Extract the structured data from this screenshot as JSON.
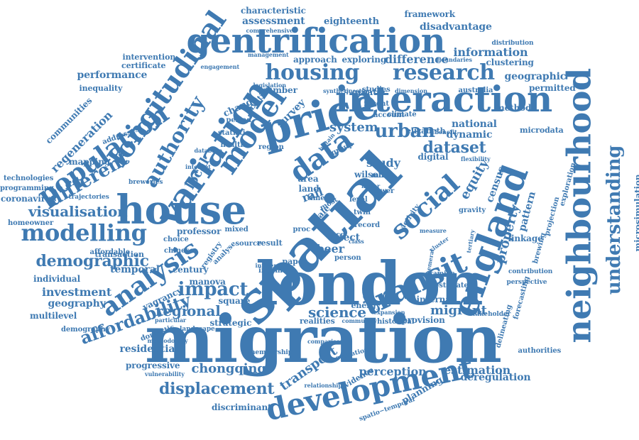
{
  "word_cloud": {
    "color": "#3f7ab2",
    "words": [
      {
        "text": "migration"
      },
      {
        "text": "london"
      },
      {
        "text": "spatial"
      },
      {
        "text": "neighbourhood"
      },
      {
        "text": "england"
      },
      {
        "text": "house"
      },
      {
        "text": "interaction"
      },
      {
        "text": "development"
      },
      {
        "text": "price"
      },
      {
        "text": "gentrification"
      },
      {
        "text": "modelling"
      },
      {
        "text": "analysis"
      },
      {
        "text": "longitudinal"
      },
      {
        "text": "understanding"
      },
      {
        "text": "population"
      },
      {
        "text": "variation"
      },
      {
        "text": "housing"
      },
      {
        "text": "research"
      },
      {
        "text": "model"
      },
      {
        "text": "authority"
      },
      {
        "text": "transit"
      },
      {
        "text": "data"
      },
      {
        "text": "social"
      },
      {
        "text": "urban"
      },
      {
        "text": "dataset"
      },
      {
        "text": "demographic"
      },
      {
        "text": "affordability"
      },
      {
        "text": "impact"
      },
      {
        "text": "different"
      },
      {
        "text": "visualisation"
      },
      {
        "text": "displacement"
      },
      {
        "text": "regional"
      },
      {
        "text": "chongqing"
      },
      {
        "text": "estimation"
      },
      {
        "text": "perception"
      },
      {
        "text": "migrant"
      },
      {
        "text": "property"
      },
      {
        "text": "equity"
      },
      {
        "text": "science"
      },
      {
        "text": "transport"
      },
      {
        "text": "microsimulation"
      },
      {
        "text": "difference"
      },
      {
        "text": "information"
      },
      {
        "text": "performance"
      },
      {
        "text": "disadvantage"
      },
      {
        "text": "regeneration"
      },
      {
        "text": "communities"
      },
      {
        "text": "local"
      },
      {
        "text": "system"
      },
      {
        "text": "investment"
      },
      {
        "text": "temporal"
      },
      {
        "text": "residential"
      },
      {
        "text": "geography"
      },
      {
        "text": "progressive"
      },
      {
        "text": "discriminant"
      },
      {
        "text": "deregulation"
      },
      {
        "text": "planning"
      },
      {
        "text": "census"
      },
      {
        "text": "pattern"
      },
      {
        "text": "geographic"
      },
      {
        "text": "national"
      },
      {
        "text": "dynamic"
      },
      {
        "text": "study"
      },
      {
        "text": "survey"
      },
      {
        "text": "beer"
      },
      {
        "text": "effect"
      },
      {
        "text": "rail"
      },
      {
        "text": "scale"
      },
      {
        "text": "assessment"
      },
      {
        "text": "eighteenth"
      },
      {
        "text": "characteristic"
      },
      {
        "text": "framework"
      },
      {
        "text": "approach"
      },
      {
        "text": "exploring"
      },
      {
        "text": "clustering"
      },
      {
        "text": "permitted"
      },
      {
        "text": "intervention"
      },
      {
        "text": "certificate"
      },
      {
        "text": "inequality"
      },
      {
        "text": "addresses"
      },
      {
        "text": "mapping"
      },
      {
        "text": "technologies"
      },
      {
        "text": "programming"
      },
      {
        "text": "coronavirus"
      },
      {
        "text": "homeowner"
      },
      {
        "text": "affordable"
      },
      {
        "text": "transaction"
      },
      {
        "text": "individual"
      },
      {
        "text": "multilevel"
      },
      {
        "text": "demography"
      },
      {
        "text": "domestic"
      },
      {
        "text": "strategic"
      },
      {
        "text": "realities"
      },
      {
        "text": "historical"
      },
      {
        "text": "provision"
      },
      {
        "text": "authorities"
      },
      {
        "text": "delineating"
      },
      {
        "text": "forecasting"
      },
      {
        "text": "brewing"
      },
      {
        "text": "linkage"
      },
      {
        "text": "projection"
      },
      {
        "text": "exploration"
      },
      {
        "text": "microdata"
      },
      {
        "text": "elizabeth"
      },
      {
        "text": "method"
      },
      {
        "text": "digital"
      },
      {
        "text": "wilson"
      },
      {
        "text": "internal"
      },
      {
        "text": "energy"
      },
      {
        "text": "century"
      },
      {
        "text": "manova"
      },
      {
        "text": "square"
      },
      {
        "text": "professor"
      },
      {
        "text": "mixed"
      },
      {
        "text": "source"
      },
      {
        "text": "result"
      },
      {
        "text": "paper"
      },
      {
        "text": "income"
      },
      {
        "text": "person"
      },
      {
        "text": "registry"
      },
      {
        "text": "number"
      },
      {
        "text": "studies"
      },
      {
        "text": "australia"
      },
      {
        "text": "boundaries"
      },
      {
        "text": "distribution"
      },
      {
        "text": "comprehensive"
      },
      {
        "text": "management"
      },
      {
        "text": "engagement"
      },
      {
        "text": "taxation"
      },
      {
        "text": "change"
      },
      {
        "text": "period"
      },
      {
        "text": "statistic"
      },
      {
        "text": "health"
      },
      {
        "text": "region"
      },
      {
        "text": "group"
      },
      {
        "text": "area"
      },
      {
        "text": "land"
      },
      {
        "text": "time"
      },
      {
        "text": "most"
      },
      {
        "text": "twin"
      },
      {
        "text": "greater"
      },
      {
        "text": "recent"
      },
      {
        "text": "account"
      },
      {
        "text": "climate"
      },
      {
        "text": "question"
      },
      {
        "text": "dimension"
      },
      {
        "text": "synthetic"
      },
      {
        "text": "benefit"
      },
      {
        "text": "gravity"
      },
      {
        "text": "examine"
      },
      {
        "text": "estimate"
      },
      {
        "text": "stakeholder"
      },
      {
        "text": "contribution"
      },
      {
        "text": "perspective"
      },
      {
        "text": "ephemeral"
      },
      {
        "text": "tertiary"
      },
      {
        "text": "landscape"
      },
      {
        "text": "particular"
      },
      {
        "text": "methodology"
      },
      {
        "text": "vulnerability"
      },
      {
        "text": "vagrancy"
      },
      {
        "text": "choice"
      },
      {
        "text": "chinese"
      },
      {
        "text": "analyse"
      },
      {
        "text": "breweries"
      },
      {
        "text": "trajectories"
      },
      {
        "text": "membership"
      },
      {
        "text": "comparison"
      },
      {
        "text": "relationship"
      },
      {
        "text": "evidence"
      },
      {
        "text": "spatio−temporal"
      },
      {
        "text": "operational"
      },
      {
        "text": "community"
      },
      {
        "text": "proc"
      },
      {
        "text": "record"
      },
      {
        "text": "lower"
      },
      {
        "text": "mode"
      },
      {
        "text": "level"
      },
      {
        "text": "activity"
      },
      {
        "text": "measure"
      },
      {
        "text": "class"
      },
      {
        "text": "influence"
      },
      {
        "text": "expansion"
      },
      {
        "text": "britain"
      },
      {
        "text": "database"
      },
      {
        "text": "internet"
      },
      {
        "text": "legislation"
      },
      {
        "text": "flexibility"
      },
      {
        "text": "cluster"
      },
      {
        "text": "meter"
      }
    ]
  }
}
